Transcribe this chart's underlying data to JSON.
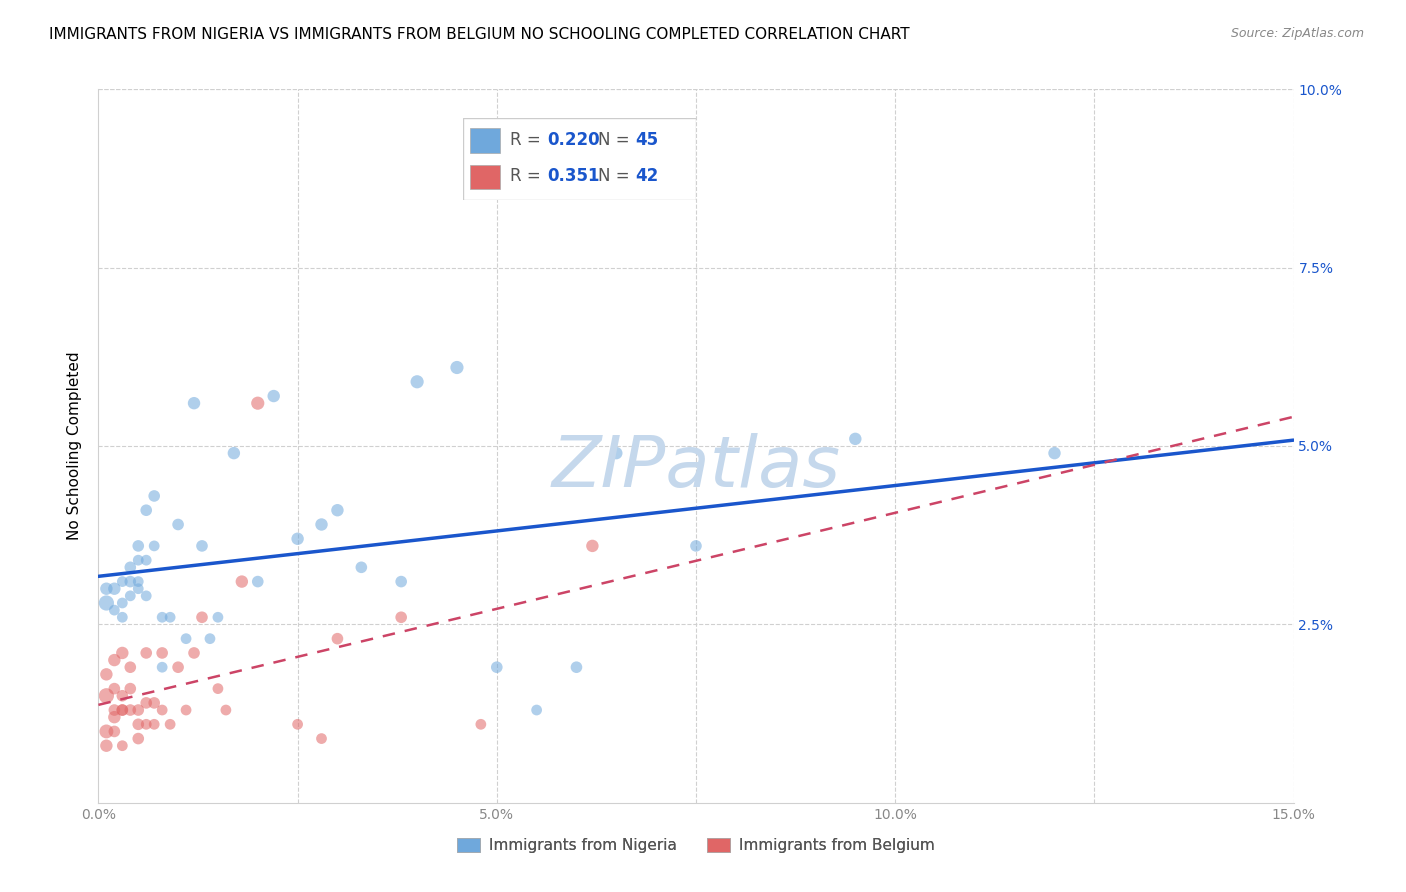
{
  "title": "IMMIGRANTS FROM NIGERIA VS IMMIGRANTS FROM BELGIUM NO SCHOOLING COMPLETED CORRELATION CHART",
  "source": "Source: ZipAtlas.com",
  "ylabel": "No Schooling Completed",
  "xlim": [
    0.0,
    0.15
  ],
  "ylim": [
    0.0,
    0.1
  ],
  "xtick_vals": [
    0.0,
    0.025,
    0.05,
    0.075,
    0.1,
    0.125,
    0.15
  ],
  "xtick_labels": [
    "0.0%",
    "",
    "5.0%",
    "",
    "10.0%",
    "",
    "15.0%"
  ],
  "ytick_vals": [
    0.0,
    0.025,
    0.05,
    0.075,
    0.1
  ],
  "ytick_labels_right": [
    "",
    "2.5%",
    "5.0%",
    "7.5%",
    "10.0%"
  ],
  "legend_labels": [
    "Immigrants from Nigeria",
    "Immigrants from Belgium"
  ],
  "legend_r": [
    "0.220",
    "0.351"
  ],
  "legend_n": [
    "45",
    "42"
  ],
  "blue_color": "#6fa8dc",
  "pink_color": "#e06666",
  "blue_line_color": "#1a56cc",
  "pink_line_color": "#cc4466",
  "nigeria_x": [
    0.001,
    0.001,
    0.002,
    0.002,
    0.003,
    0.003,
    0.003,
    0.004,
    0.004,
    0.004,
    0.005,
    0.005,
    0.005,
    0.005,
    0.006,
    0.006,
    0.006,
    0.007,
    0.007,
    0.008,
    0.008,
    0.009,
    0.01,
    0.011,
    0.012,
    0.013,
    0.014,
    0.015,
    0.017,
    0.02,
    0.022,
    0.025,
    0.028,
    0.03,
    0.033,
    0.038,
    0.04,
    0.045,
    0.05,
    0.055,
    0.06,
    0.065,
    0.075,
    0.095,
    0.12
  ],
  "nigeria_y": [
    0.028,
    0.03,
    0.03,
    0.027,
    0.031,
    0.028,
    0.026,
    0.033,
    0.029,
    0.031,
    0.03,
    0.036,
    0.031,
    0.034,
    0.034,
    0.029,
    0.041,
    0.043,
    0.036,
    0.026,
    0.019,
    0.026,
    0.039,
    0.023,
    0.056,
    0.036,
    0.023,
    0.026,
    0.049,
    0.031,
    0.057,
    0.037,
    0.039,
    0.041,
    0.033,
    0.031,
    0.059,
    0.061,
    0.019,
    0.013,
    0.019,
    0.049,
    0.036,
    0.051,
    0.049
  ],
  "belgium_x": [
    0.001,
    0.001,
    0.001,
    0.001,
    0.002,
    0.002,
    0.002,
    0.002,
    0.002,
    0.003,
    0.003,
    0.003,
    0.003,
    0.003,
    0.004,
    0.004,
    0.004,
    0.005,
    0.005,
    0.005,
    0.006,
    0.006,
    0.006,
    0.007,
    0.007,
    0.008,
    0.008,
    0.009,
    0.01,
    0.011,
    0.012,
    0.013,
    0.015,
    0.016,
    0.018,
    0.02,
    0.025,
    0.028,
    0.03,
    0.038,
    0.048,
    0.062
  ],
  "belgium_y": [
    0.015,
    0.01,
    0.018,
    0.008,
    0.012,
    0.01,
    0.02,
    0.016,
    0.013,
    0.013,
    0.015,
    0.021,
    0.008,
    0.013,
    0.013,
    0.016,
    0.019,
    0.013,
    0.011,
    0.009,
    0.014,
    0.021,
    0.011,
    0.011,
    0.014,
    0.021,
    0.013,
    0.011,
    0.019,
    0.013,
    0.021,
    0.026,
    0.016,
    0.013,
    0.031,
    0.056,
    0.011,
    0.009,
    0.023,
    0.026,
    0.011,
    0.036
  ],
  "nigeria_sizes": [
    120,
    80,
    80,
    60,
    60,
    60,
    60,
    70,
    60,
    70,
    60,
    70,
    60,
    60,
    60,
    60,
    70,
    70,
    60,
    60,
    60,
    60,
    70,
    60,
    80,
    70,
    60,
    60,
    80,
    70,
    80,
    80,
    80,
    80,
    70,
    70,
    90,
    90,
    70,
    60,
    70,
    80,
    70,
    80,
    80
  ],
  "belgium_sizes": [
    120,
    100,
    80,
    80,
    80,
    70,
    80,
    70,
    70,
    70,
    70,
    80,
    60,
    70,
    70,
    70,
    70,
    70,
    70,
    70,
    70,
    70,
    60,
    60,
    70,
    70,
    60,
    60,
    70,
    60,
    70,
    70,
    60,
    60,
    80,
    90,
    60,
    60,
    70,
    70,
    60,
    80
  ],
  "watermark_text": "ZIPatlas",
  "watermark_color": "#c5d8ec",
  "background_color": "#ffffff",
  "grid_color": "#d0d0d0",
  "title_fontsize": 11,
  "axis_label_color": "#1a56cc",
  "source_color": "#888888"
}
